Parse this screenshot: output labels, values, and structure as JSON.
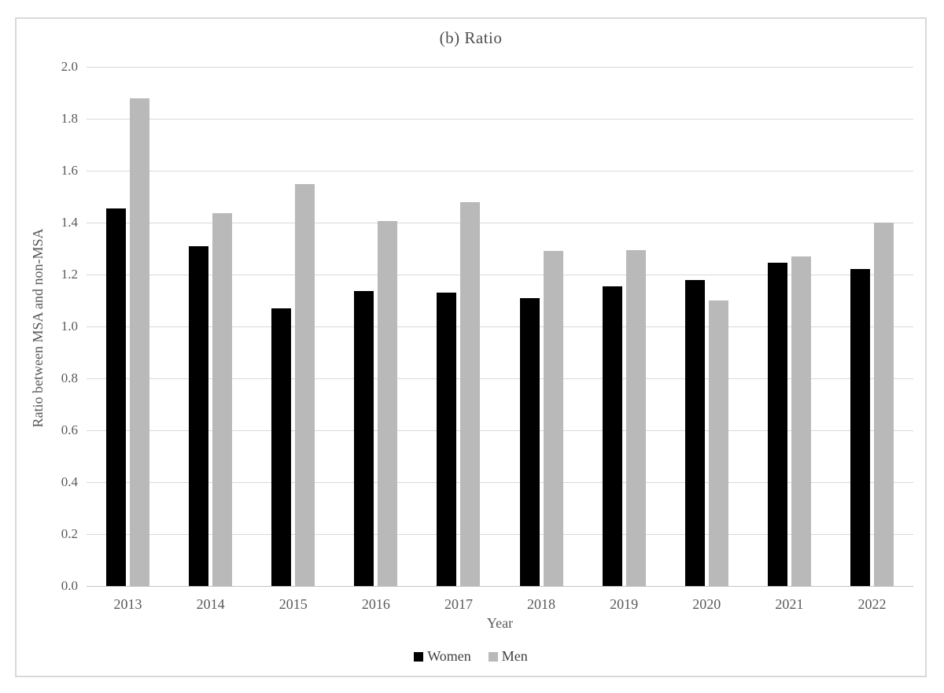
{
  "title": "(b) Ratio",
  "colors": {
    "women_bar": "#000000",
    "men_bar": "#b9b9b9",
    "gridline": "#d9d9d9",
    "axis_line": "#c4c4c4",
    "text": "#595959",
    "frame_border": "#d9d9d9",
    "background": "#ffffff"
  },
  "chart_data": {
    "type": "bar",
    "title": "(b) Ratio",
    "xlabel": "Year",
    "ylabel": "Ratio between MSA and non-MSA",
    "categories": [
      "2013",
      "2014",
      "2015",
      "2016",
      "2017",
      "2018",
      "2019",
      "2020",
      "2021",
      "2022"
    ],
    "series": [
      {
        "name": "Women",
        "color": "#000000",
        "values": [
          1.455,
          1.31,
          1.07,
          1.135,
          1.13,
          1.11,
          1.155,
          1.18,
          1.245,
          1.22
        ]
      },
      {
        "name": "Men",
        "color": "#b9b9b9",
        "values": [
          1.88,
          1.435,
          1.55,
          1.405,
          1.48,
          1.29,
          1.295,
          1.1,
          1.27,
          1.4
        ]
      }
    ],
    "ylim": [
      0.0,
      2.0
    ],
    "ytick_step": 0.2,
    "ytick_labels": [
      "0.0",
      "0.2",
      "0.4",
      "0.6",
      "0.8",
      "1.0",
      "1.2",
      "1.4",
      "1.6",
      "1.8",
      "2.0"
    ],
    "grid": true,
    "legend_position": "bottom"
  }
}
